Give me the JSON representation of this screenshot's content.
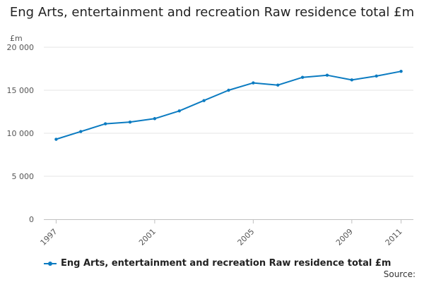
{
  "chart_data": {
    "type": "line",
    "title": "Eng Arts, entertainment and recreation Raw residence total £m",
    "ylabel": "£m",
    "xlabel": "",
    "x": [
      1997,
      1998,
      1999,
      2000,
      2001,
      2002,
      2003,
      2004,
      2005,
      2006,
      2007,
      2008,
      2009,
      2010,
      2011
    ],
    "x_tick_labels": [
      "1997",
      "2001",
      "2005",
      "2009",
      "2011"
    ],
    "y_tick_labels": [
      "0",
      "5 000",
      "10 000",
      "15 000",
      "20 000"
    ],
    "ylim": [
      0,
      20000
    ],
    "grid": "horizontal",
    "legend_position": "bottom-left",
    "series": [
      {
        "name": "Eng Arts, entertainment and recreation Raw residence total £m",
        "color": "#0b7bc1",
        "values": [
          9300,
          10200,
          11100,
          11300,
          11700,
          12600,
          13800,
          15000,
          15850,
          15600,
          16500,
          16750,
          16200,
          16650,
          17200
        ]
      }
    ]
  },
  "source_label": "Source:"
}
